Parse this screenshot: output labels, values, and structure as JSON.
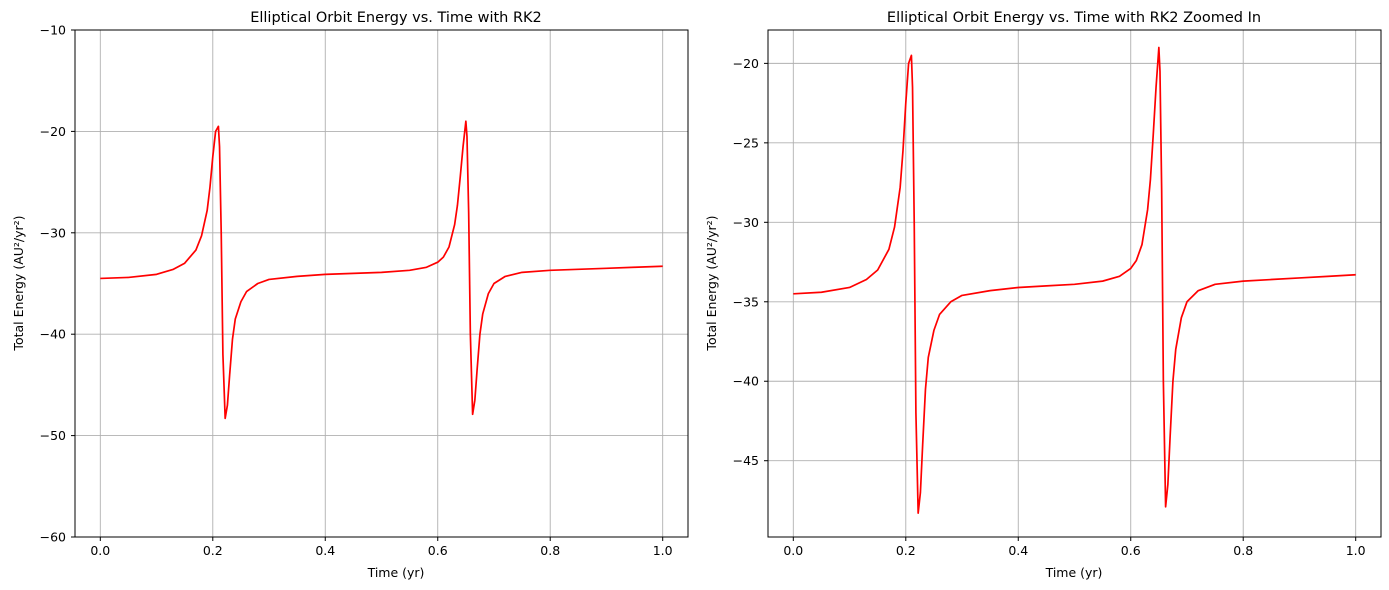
{
  "chart_data": [
    {
      "type": "line",
      "title": "Elliptical Orbit Energy vs. Time with RK2",
      "xlabel": "Time (yr)",
      "ylabel": "Total Energy (AU²/yr²)",
      "xlim": [
        -0.045,
        1.045
      ],
      "ylim": [
        -60,
        -10
      ],
      "xticks": [
        0.0,
        0.2,
        0.4,
        0.6,
        0.8,
        1.0
      ],
      "xtick_labels": [
        "0.0",
        "0.2",
        "0.4",
        "0.6",
        "0.8",
        "1.0"
      ],
      "yticks": [
        -60,
        -50,
        -40,
        -30,
        -20,
        -10
      ],
      "ytick_labels": [
        "−60",
        "−50",
        "−40",
        "−30",
        "−20",
        "−10"
      ],
      "grid": true,
      "series": [
        {
          "color": "#ff0000",
          "x": [
            0.0,
            0.05,
            0.1,
            0.13,
            0.15,
            0.17,
            0.18,
            0.19,
            0.195,
            0.2,
            0.205,
            0.21,
            0.212,
            0.215,
            0.218,
            0.222,
            0.226,
            0.23,
            0.235,
            0.24,
            0.25,
            0.26,
            0.28,
            0.3,
            0.35,
            0.4,
            0.45,
            0.5,
            0.55,
            0.58,
            0.6,
            0.61,
            0.62,
            0.63,
            0.635,
            0.64,
            0.645,
            0.65,
            0.652,
            0.655,
            0.658,
            0.662,
            0.666,
            0.67,
            0.675,
            0.68,
            0.69,
            0.7,
            0.72,
            0.75,
            0.8,
            0.85,
            0.9,
            0.95,
            1.0
          ],
          "y": [
            -34.5,
            -34.4,
            -34.1,
            -33.6,
            -33.0,
            -31.7,
            -30.3,
            -27.8,
            -25.5,
            -22.5,
            -20.0,
            -19.5,
            -21.5,
            -30.0,
            -42.0,
            -48.3,
            -47.0,
            -44.0,
            -40.5,
            -38.5,
            -36.8,
            -35.8,
            -35.0,
            -34.6,
            -34.3,
            -34.1,
            -34.0,
            -33.9,
            -33.7,
            -33.4,
            -32.9,
            -32.4,
            -31.4,
            -29.2,
            -27.3,
            -24.5,
            -21.5,
            -19.0,
            -20.5,
            -28.0,
            -40.0,
            -47.9,
            -46.5,
            -43.5,
            -40.0,
            -38.0,
            -36.0,
            -35.0,
            -34.3,
            -33.9,
            -33.7,
            -33.6,
            -33.5,
            -33.4,
            -33.3
          ]
        }
      ]
    },
    {
      "type": "line",
      "title": "Elliptical Orbit Energy vs. Time with RK2 Zoomed In",
      "xlabel": "Time (yr)",
      "ylabel": "Total Energy (AU²/yr²)",
      "xlim": [
        -0.045,
        1.045
      ],
      "ylim": [
        -49.8,
        -17.9
      ],
      "xticks": [
        0.0,
        0.2,
        0.4,
        0.6,
        0.8,
        1.0
      ],
      "xtick_labels": [
        "0.0",
        "0.2",
        "0.4",
        "0.6",
        "0.8",
        "1.0"
      ],
      "yticks": [
        -45,
        -40,
        -35,
        -30,
        -25,
        -20
      ],
      "ytick_labels": [
        "−45",
        "−40",
        "−35",
        "−30",
        "−25",
        "−20"
      ],
      "grid": true,
      "series": [
        {
          "color": "#ff0000",
          "x": [
            0.0,
            0.05,
            0.1,
            0.13,
            0.15,
            0.17,
            0.18,
            0.19,
            0.195,
            0.2,
            0.205,
            0.21,
            0.212,
            0.215,
            0.218,
            0.222,
            0.226,
            0.23,
            0.235,
            0.24,
            0.25,
            0.26,
            0.28,
            0.3,
            0.35,
            0.4,
            0.45,
            0.5,
            0.55,
            0.58,
            0.6,
            0.61,
            0.62,
            0.63,
            0.635,
            0.64,
            0.645,
            0.65,
            0.652,
            0.655,
            0.658,
            0.662,
            0.666,
            0.67,
            0.675,
            0.68,
            0.69,
            0.7,
            0.72,
            0.75,
            0.8,
            0.85,
            0.9,
            0.95,
            1.0
          ],
          "y": [
            -34.5,
            -34.4,
            -34.1,
            -33.6,
            -33.0,
            -31.7,
            -30.3,
            -27.8,
            -25.5,
            -22.5,
            -20.0,
            -19.5,
            -21.5,
            -30.0,
            -42.0,
            -48.3,
            -47.0,
            -44.0,
            -40.5,
            -38.5,
            -36.8,
            -35.8,
            -35.0,
            -34.6,
            -34.3,
            -34.1,
            -34.0,
            -33.9,
            -33.7,
            -33.4,
            -32.9,
            -32.4,
            -31.4,
            -29.2,
            -27.3,
            -24.5,
            -21.5,
            -19.0,
            -20.5,
            -28.0,
            -40.0,
            -47.9,
            -46.5,
            -43.5,
            -40.0,
            -38.0,
            -36.0,
            -35.0,
            -34.3,
            -33.9,
            -33.7,
            -33.6,
            -33.5,
            -33.4,
            -33.3
          ]
        }
      ]
    }
  ]
}
